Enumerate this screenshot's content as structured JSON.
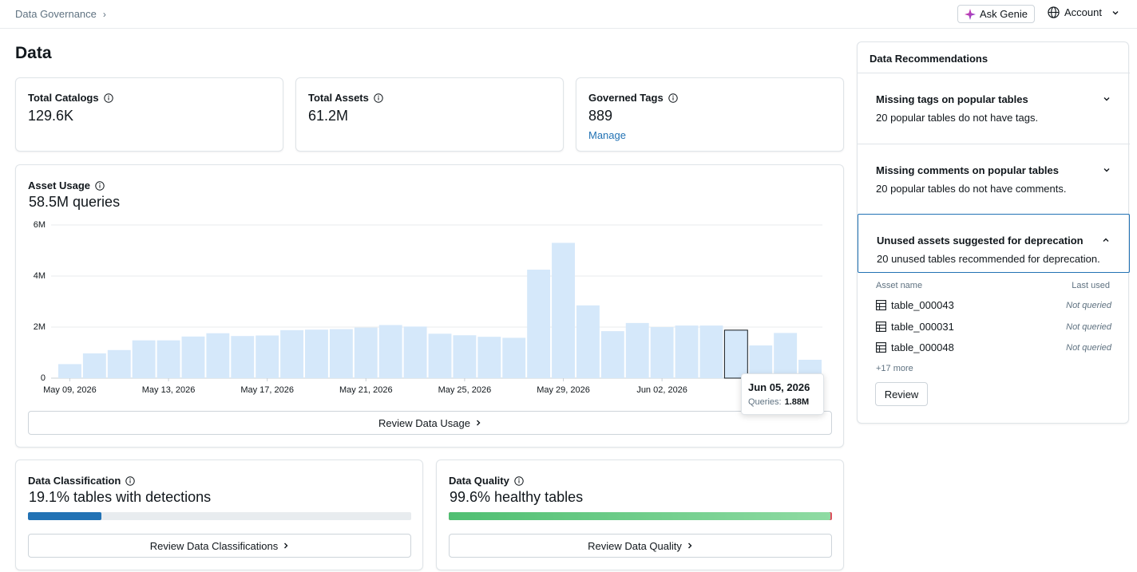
{
  "breadcrumb": {
    "label": "Data Governance"
  },
  "header": {
    "genie_label": "Ask Genie",
    "account_label": "Account"
  },
  "page": {
    "title": "Data"
  },
  "metrics": {
    "total_catalogs": {
      "label": "Total Catalogs",
      "value": "129.6K"
    },
    "total_assets": {
      "label": "Total Assets",
      "value": "61.2M"
    },
    "governed_tags": {
      "label": "Governed Tags",
      "value": "889",
      "link": "Manage"
    }
  },
  "asset_usage": {
    "label": "Asset Usage",
    "value": "58.5M queries",
    "review_label": "Review Data Usage",
    "tooltip": {
      "date": "Jun 05, 2026",
      "label": "Queries:",
      "value": "1.88M"
    },
    "highlight_index": 27
  },
  "chart_data": {
    "type": "bar",
    "categories": [
      "May 09, 2026",
      "May 10, 2026",
      "May 11, 2026",
      "May 12, 2026",
      "May 13, 2026",
      "May 14, 2026",
      "May 15, 2026",
      "May 16, 2026",
      "May 17, 2026",
      "May 18, 2026",
      "May 19, 2026",
      "May 20, 2026",
      "May 21, 2026",
      "May 22, 2026",
      "May 23, 2026",
      "May 24, 2026",
      "May 25, 2026",
      "May 26, 2026",
      "May 27, 2026",
      "May 28, 2026",
      "May 29, 2026",
      "May 30, 2026",
      "May 31, 2026",
      "Jun 01, 2026",
      "Jun 02, 2026",
      "Jun 03, 2026",
      "Jun 04, 2026",
      "Jun 05, 2026",
      "Jun 06, 2026",
      "Jun 07, 2026",
      "Jun 08, 2026"
    ],
    "tick_labels": [
      "May 09, 2026",
      "May 13, 2026",
      "May 17, 2026",
      "May 21, 2026",
      "May 25, 2026",
      "May 29, 2026",
      "Jun 02, 2026",
      "Ju"
    ],
    "tick_indices": [
      0,
      4,
      8,
      12,
      16,
      20,
      24,
      28
    ],
    "values": [
      0.55,
      0.97,
      1.1,
      1.48,
      1.48,
      1.63,
      1.76,
      1.65,
      1.67,
      1.88,
      1.9,
      1.92,
      1.98,
      2.08,
      2.02,
      1.74,
      1.68,
      1.62,
      1.58,
      4.25,
      5.3,
      2.85,
      1.84,
      2.16,
      2.0,
      2.06,
      2.06,
      1.88,
      1.28,
      1.77,
      0.72
    ],
    "y_ticks": [
      "0",
      "2M",
      "4M",
      "6M"
    ],
    "ylim": [
      0,
      6
    ],
    "unit": "M",
    "bar_color": "#d5e8fa",
    "grid": true
  },
  "classification": {
    "label": "Data Classification",
    "value": "19.1% tables with detections",
    "fraction": 0.191,
    "review_label": "Review Data Classifications",
    "fill_color": "#2272b4"
  },
  "quality": {
    "label": "Data Quality",
    "value": "99.6% healthy tables",
    "fraction": 0.996,
    "review_label": "Review Data Quality",
    "fill_color": "#4fbf72",
    "error_color": "#e04f5f"
  },
  "recommendations": {
    "title": "Data Recommendations",
    "items": [
      {
        "title": "Missing tags on popular tables",
        "desc": "20 popular tables do not have tags."
      },
      {
        "title": "Missing comments on popular tables",
        "desc": "20 popular tables do not have comments."
      },
      {
        "title": "Unused assets suggested for deprecation",
        "desc": "20 unused tables recommended for deprecation."
      }
    ],
    "columns": [
      "Asset name",
      "Last used"
    ],
    "assets": [
      {
        "name": "table_000043",
        "last_used": "Not queried"
      },
      {
        "name": "table_000031",
        "last_used": "Not queried"
      },
      {
        "name": "table_000048",
        "last_used": "Not queried"
      }
    ],
    "more": "+17 more",
    "review_label": "Review"
  }
}
